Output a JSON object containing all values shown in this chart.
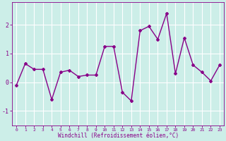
{
  "x": [
    0,
    1,
    2,
    3,
    4,
    5,
    6,
    7,
    8,
    9,
    10,
    11,
    12,
    13,
    14,
    15,
    16,
    17,
    18,
    19,
    20,
    21,
    22,
    23
  ],
  "y": [
    -0.1,
    0.65,
    0.45,
    0.45,
    -0.6,
    0.35,
    0.42,
    0.2,
    0.25,
    0.25,
    1.25,
    1.25,
    -0.35,
    -0.65,
    1.8,
    1.95,
    1.5,
    2.4,
    0.3,
    1.55,
    0.6,
    0.35,
    0.05,
    0.6
  ],
  "line_color": "#880088",
  "marker": "D",
  "marker_size": 2,
  "bg_color": "#cceee8",
  "grid_color": "#ffffff",
  "xlabel": "Windchill (Refroidissement éolien,°C)",
  "xlabel_color": "#880088",
  "tick_color": "#880088",
  "axis_color": "#880088",
  "ylim": [
    -1.5,
    2.8
  ],
  "xlim": [
    -0.5,
    23.5
  ],
  "yticks": [
    -1,
    0,
    1,
    2
  ],
  "xticks": [
    0,
    1,
    2,
    3,
    4,
    5,
    6,
    7,
    8,
    9,
    10,
    11,
    12,
    13,
    14,
    15,
    16,
    17,
    18,
    19,
    20,
    21,
    22,
    23
  ],
  "linewidth": 1.0,
  "figsize": [
    3.2,
    2.0
  ],
  "dpi": 100
}
